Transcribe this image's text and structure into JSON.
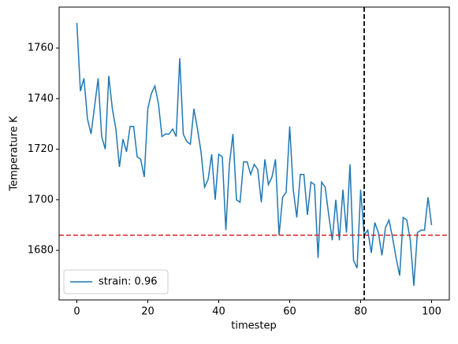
{
  "chart_data": {
    "type": "line",
    "xlabel": "timestep",
    "ylabel": "Temperature K",
    "x": [
      0,
      1,
      2,
      3,
      4,
      5,
      6,
      7,
      8,
      9,
      10,
      11,
      12,
      13,
      14,
      15,
      16,
      17,
      18,
      19,
      20,
      21,
      22,
      23,
      24,
      25,
      26,
      27,
      28,
      29,
      30,
      31,
      32,
      33,
      34,
      35,
      36,
      37,
      38,
      39,
      40,
      41,
      42,
      43,
      44,
      45,
      46,
      47,
      48,
      49,
      50,
      51,
      52,
      53,
      54,
      55,
      56,
      57,
      58,
      59,
      60,
      61,
      62,
      63,
      64,
      65,
      66,
      67,
      68,
      69,
      70,
      71,
      72,
      73,
      74,
      75,
      76,
      77,
      78,
      79,
      80,
      81,
      82,
      83,
      84,
      85,
      86,
      87,
      88,
      89,
      90,
      91,
      92,
      93,
      94,
      95,
      96,
      97,
      98,
      99,
      100
    ],
    "series": [
      {
        "name": "strain: 0.96",
        "color": "#1f77b4",
        "values": [
          1770,
          1743,
          1748,
          1732,
          1726,
          1737,
          1748,
          1725,
          1720,
          1749,
          1736,
          1728,
          1713,
          1724,
          1719,
          1729,
          1729,
          1717,
          1716,
          1709,
          1736,
          1742,
          1745,
          1738,
          1725,
          1726,
          1726,
          1728,
          1725,
          1756,
          1726,
          1723,
          1722,
          1736,
          1728,
          1719,
          1705,
          1708,
          1718,
          1700,
          1718,
          1717,
          1688,
          1714,
          1726,
          1700,
          1699,
          1715,
          1715,
          1710,
          1714,
          1712,
          1699,
          1716,
          1706,
          1709,
          1716,
          1686,
          1701,
          1703,
          1729,
          1704,
          1693,
          1710,
          1710,
          1694,
          1707,
          1706,
          1677,
          1707,
          1705,
          1694,
          1684,
          1700,
          1684,
          1704,
          1687,
          1714,
          1676,
          1673,
          1704,
          1686,
          1688,
          1679,
          1691,
          1687,
          1678,
          1689,
          1692,
          1685,
          1677,
          1670,
          1693,
          1692,
          1684,
          1666,
          1687,
          1688,
          1688,
          1701,
          1690
        ]
      }
    ],
    "hline": {
      "value": 1686,
      "color": "#d62728"
    },
    "vline": {
      "value": 81,
      "color": "#000000"
    },
    "xlim": [
      -5,
      105
    ],
    "ylim": [
      1660.4,
      1776.2
    ],
    "xticks": [
      0,
      20,
      40,
      60,
      80,
      100
    ],
    "yticks": [
      1680,
      1700,
      1720,
      1740,
      1760
    ],
    "legend": "lower left"
  }
}
